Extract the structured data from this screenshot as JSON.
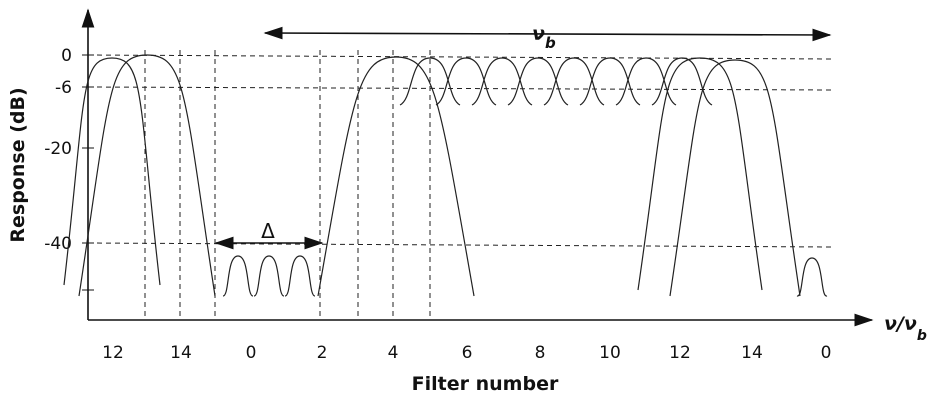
{
  "y_axis": {
    "label": "Response (dB)",
    "ticks": [
      "0",
      "-6",
      "-20",
      "-40"
    ]
  },
  "x_axis": {
    "label": "Filter number",
    "end_label": "ν/ν",
    "end_label_sub": "b",
    "ticks": [
      "12",
      "14",
      "0",
      "2",
      "4",
      "6",
      "8",
      "10",
      "12",
      "14",
      "0"
    ]
  },
  "annotations": {
    "bandwidth": "ν",
    "bandwidth_sub": "b",
    "spacing": "Δ"
  }
}
